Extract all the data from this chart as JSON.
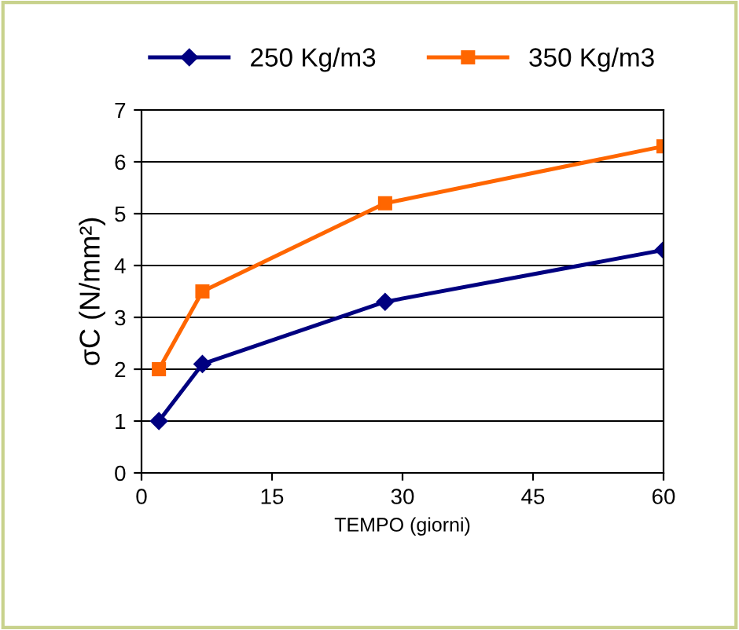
{
  "chart_data": {
    "type": "line",
    "xlabel": "TEMPO (giorni)",
    "ylabel": "σC (N/mm²)",
    "x": [
      2,
      7,
      28,
      60
    ],
    "series": [
      {
        "name": "250 Kg/m3",
        "color": "#000080",
        "values": [
          1,
          2.1,
          3.3,
          4.3
        ],
        "marker": "diamond"
      },
      {
        "name": "350 Kg/m3",
        "color": "#ff6600",
        "values": [
          2,
          3.5,
          5.2,
          6.3
        ],
        "marker": "square"
      }
    ],
    "xlim": [
      0,
      60
    ],
    "xticks": [
      0,
      15,
      30,
      45,
      60
    ],
    "ylim": [
      0,
      7
    ],
    "yticks": [
      0,
      1,
      2,
      3,
      4,
      5,
      6,
      7
    ],
    "grid": "y",
    "legend": "top",
    "line_style": "solid"
  }
}
